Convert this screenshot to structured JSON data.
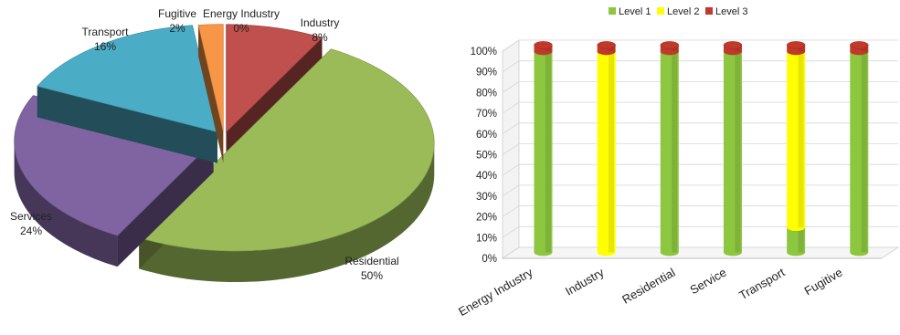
{
  "chart_data": [
    {
      "type": "pie",
      "title": "",
      "slices": [
        {
          "label": "Energy Industry",
          "value": 0,
          "value_label": "0%",
          "color": "#7f7f7f"
        },
        {
          "label": "Industry",
          "value": 8,
          "value_label": "8%",
          "color": "#c0504d"
        },
        {
          "label": "Residential",
          "value": 50,
          "value_label": "50%",
          "color": "#9bbb59"
        },
        {
          "label": "Services",
          "value": 24,
          "value_label": "24%",
          "color": "#8064a2"
        },
        {
          "label": "Transport",
          "value": 16,
          "value_label": "16%",
          "color": "#4bacc6"
        },
        {
          "label": "Fugitive",
          "value": 2,
          "value_label": "2%",
          "color": "#f79646"
        }
      ],
      "style": "3d-exploded"
    },
    {
      "type": "bar",
      "stacked": true,
      "style": "3d-cylinder",
      "title": "",
      "categories": [
        "Energy Industry",
        "Industry",
        "Residential",
        "Service",
        "Transport",
        "Fugitive"
      ],
      "series": [
        {
          "name": "Level 1",
          "color": "#8dc63f",
          "values": [
            97,
            0,
            97,
            97,
            12,
            97
          ]
        },
        {
          "name": "Level 2",
          "color": "#ffff00",
          "values": [
            0,
            97,
            0,
            0,
            85,
            0
          ]
        },
        {
          "name": "Level 3",
          "color": "#c0392b",
          "values": [
            3,
            3,
            3,
            3,
            3,
            3
          ]
        }
      ],
      "ylim": [
        0,
        100
      ],
      "yticks": [
        "0%",
        "10%",
        "20%",
        "30%",
        "40%",
        "50%",
        "60%",
        "70%",
        "80%",
        "90%",
        "100%"
      ],
      "legend_position": "top",
      "grid": true
    }
  ]
}
